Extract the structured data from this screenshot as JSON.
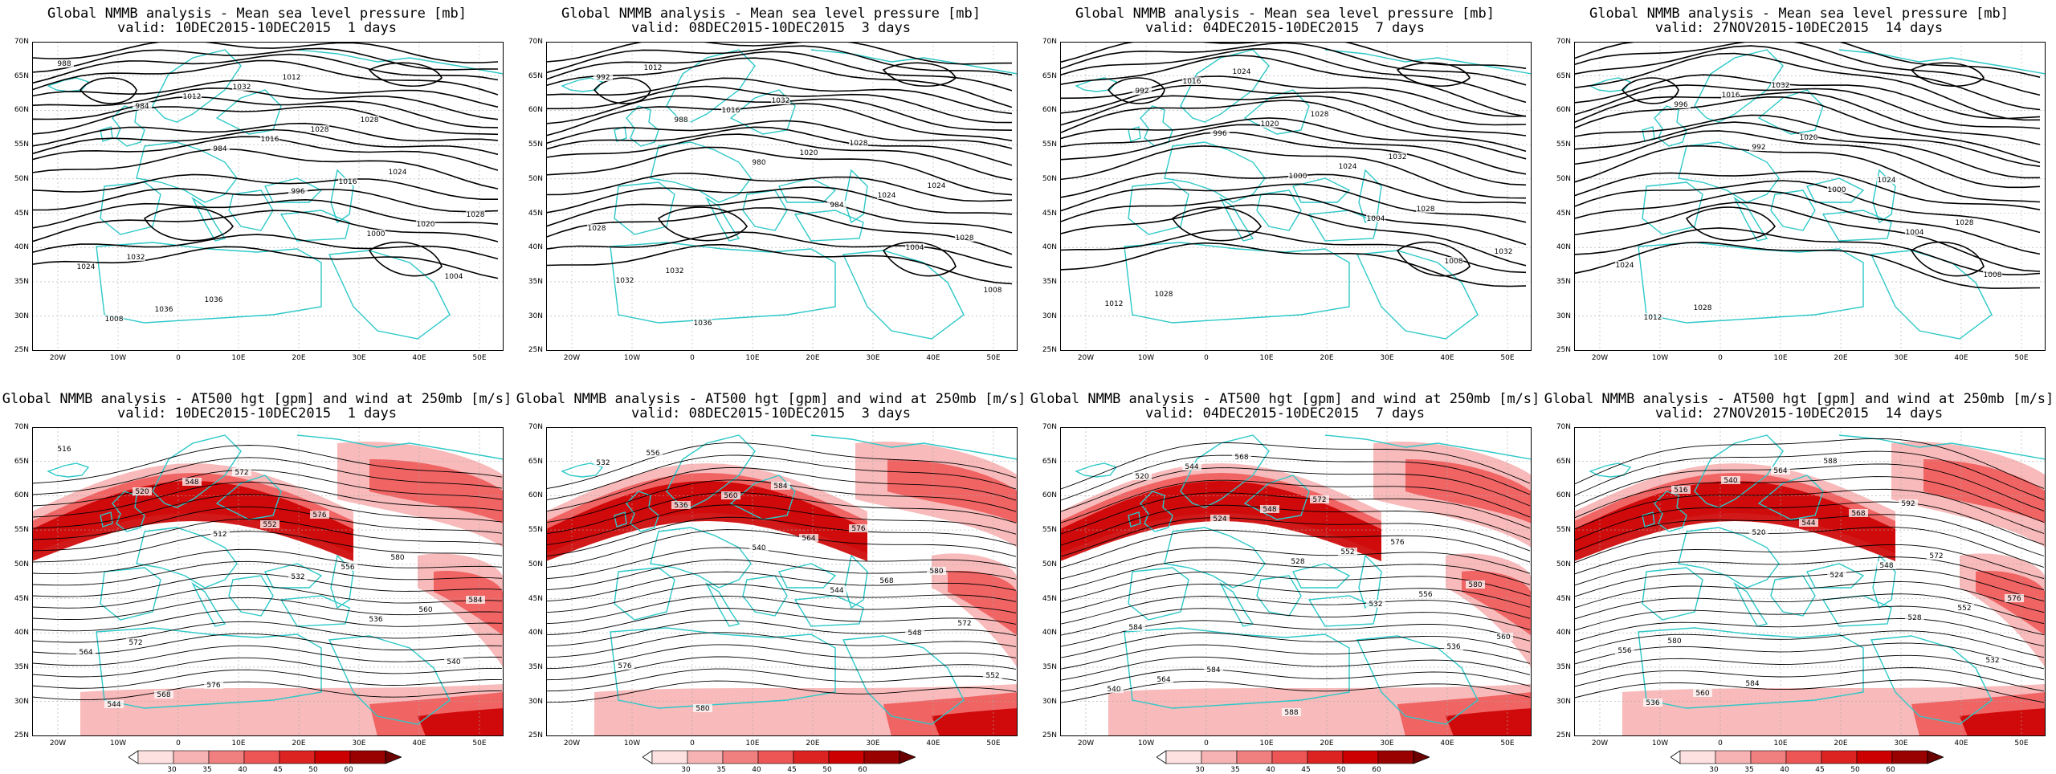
{
  "colors": {
    "coast": "#2ec8c8",
    "contour": "#000000",
    "grid": "#aaaaaa",
    "wind_low": "#f7b3b3",
    "wind_mid": "#ee5555",
    "wind_high": "#cc0000",
    "wind_max": "#6a0000"
  },
  "axes": {
    "lat_labels": [
      "70N",
      "65N",
      "60N",
      "55N",
      "50N",
      "45N",
      "40N",
      "35N",
      "30N",
      "25N"
    ],
    "lon_labels": [
      "20W",
      "10W",
      "0",
      "10E",
      "20E",
      "30E",
      "40E",
      "50E"
    ]
  },
  "colorbar_labels": [
    "30",
    "35",
    "40",
    "45",
    "50",
    "60"
  ],
  "panels": [
    {
      "title": "Global NMMB analysis - Mean sea level pressure [mb]",
      "subtitle": "valid: 10DEC2015-10DEC2015  1 days",
      "kind": "mslp",
      "labels": [
        "988",
        "984",
        "984",
        "996",
        "1000",
        "1004",
        "1008",
        "1012",
        "1016",
        "1016",
        "1020",
        "1024",
        "1036",
        "1032",
        "1028",
        "1024",
        "1028",
        "1032",
        "1036",
        "1012",
        "1028"
      ]
    },
    {
      "title": "Global NMMB analysis - Mean sea level pressure [mb]",
      "subtitle": "valid: 08DEC2015-10DEC2015  3 days",
      "kind": "mslp",
      "labels": [
        "992",
        "988",
        "980",
        "984",
        "1004",
        "1008",
        "1012",
        "1016",
        "1020",
        "1024",
        "1028",
        "1032",
        "1036",
        "1032",
        "1028",
        "1024",
        "1028",
        "1032"
      ]
    },
    {
      "title": "Global NMMB analysis - Mean sea level pressure [mb]",
      "subtitle": "valid: 04DEC2015-10DEC2015  7 days",
      "kind": "mslp",
      "labels": [
        "992",
        "996",
        "1000",
        "1004",
        "1008",
        "1012",
        "1016",
        "1020",
        "1024",
        "1028",
        "1032",
        "1028",
        "1024",
        "1028",
        "1032"
      ]
    },
    {
      "title": "Global NMMB analysis - Mean sea level pressure [mb]",
      "subtitle": "valid: 27NOV2015-10DEC2015  14 days",
      "kind": "mslp",
      "labels": [
        "996",
        "992",
        "1000",
        "1004",
        "1008",
        "1012",
        "1016",
        "1020",
        "1024",
        "1028",
        "1024",
        "1028",
        "1032"
      ]
    },
    {
      "title": "Global NMMB analysis - AT500 hgt [gpm] and wind at 250mb [m/s]",
      "subtitle": "valid: 10DEC2015-10DEC2015  1 days",
      "kind": "z500",
      "labels": [
        "516",
        "520",
        "512",
        "532",
        "536",
        "540",
        "544",
        "548",
        "552",
        "556",
        "560",
        "564",
        "568",
        "572",
        "576",
        "580",
        "584",
        "572",
        "576"
      ]
    },
    {
      "title": "Global NMMB analysis - AT500 hgt [gpm] and wind at 250mb [m/s]",
      "subtitle": "valid: 08DEC2015-10DEC2015  3 days",
      "kind": "z500",
      "labels": [
        "532",
        "536",
        "540",
        "544",
        "548",
        "552",
        "556",
        "560",
        "564",
        "568",
        "572",
        "576",
        "580",
        "584",
        "576",
        "580"
      ]
    },
    {
      "title": "Global NMMB analysis - AT500 hgt [gpm] and wind at 250mb [m/s]",
      "subtitle": "valid: 04DEC2015-10DEC2015  7 days",
      "kind": "z500",
      "labels": [
        "520",
        "524",
        "528",
        "532",
        "536",
        "540",
        "544",
        "548",
        "552",
        "556",
        "560",
        "564",
        "568",
        "572",
        "576",
        "580",
        "584",
        "584",
        "588"
      ]
    },
    {
      "title": "Global NMMB analysis - AT500 hgt [gpm] and wind at 250mb [m/s]",
      "subtitle": "valid: 27NOV2015-10DEC2015  14 days",
      "kind": "z500",
      "labels": [
        "516",
        "520",
        "524",
        "528",
        "532",
        "536",
        "540",
        "544",
        "548",
        "552",
        "556",
        "560",
        "564",
        "568",
        "572",
        "576",
        "580",
        "584",
        "588",
        "592"
      ]
    }
  ]
}
